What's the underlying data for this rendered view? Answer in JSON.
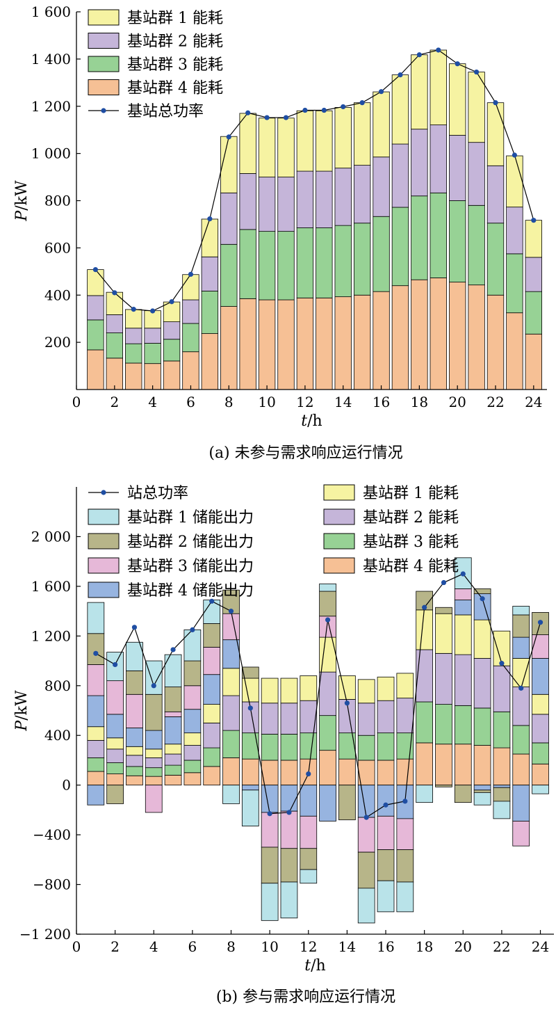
{
  "colors": {
    "g1": "#f6f3a2",
    "g2": "#c5b5d9",
    "g3": "#97d295",
    "g4": "#f6c095",
    "s1": "#b9e3e9",
    "s2": "#b7b589",
    "s3": "#e6b8d8",
    "s4": "#97b4e0",
    "line": "#1f4ea3"
  },
  "chart_data": [
    {
      "type": "bar",
      "caption": "(a)  未参与需求响应运行情况",
      "xlabel_main": "t",
      "xlabel_unit": "/h",
      "ylabel_main": "P",
      "ylabel_unit": "/kW",
      "xlim": [
        0,
        24.7
      ],
      "ylim": [
        0,
        1600
      ],
      "xticks": [
        0,
        2,
        4,
        6,
        8,
        10,
        12,
        14,
        16,
        18,
        20,
        22,
        24
      ],
      "xtick_labels": [
        "0",
        "2",
        "4",
        "6",
        "8",
        "10",
        "12",
        "14",
        "16",
        "18",
        "20",
        "22",
        "24"
      ],
      "yticks": [
        200,
        400,
        600,
        800,
        1000,
        1200,
        1400,
        1600
      ],
      "ytick_labels": [
        "200",
        "400",
        "600",
        "800",
        "1 000",
        "1 200",
        "1 400",
        "1 600"
      ],
      "x": [
        1,
        2,
        3,
        4,
        5,
        6,
        7,
        8,
        9,
        10,
        11,
        12,
        13,
        14,
        15,
        16,
        17,
        18,
        19,
        20,
        21,
        22,
        23,
        24
      ],
      "series": [
        {
          "key": "g4",
          "name": "基站群 4 能耗",
          "values": [
            168,
            133,
            112,
            110,
            121,
            160,
            237,
            352,
            385,
            380,
            380,
            388,
            388,
            393,
            400,
            415,
            440,
            465,
            473,
            455,
            443,
            400,
            325,
            235
          ]
        },
        {
          "key": "g3",
          "name": "基站群 3 能耗",
          "values": [
            127,
            107,
            82,
            86,
            92,
            120,
            180,
            263,
            293,
            290,
            290,
            297,
            297,
            302,
            305,
            318,
            332,
            355,
            360,
            345,
            337,
            305,
            250,
            180
          ]
        },
        {
          "key": "g2",
          "name": "基站群 2 能耗",
          "values": [
            103,
            77,
            66,
            64,
            74,
            100,
            145,
            218,
            237,
            230,
            230,
            240,
            240,
            243,
            245,
            252,
            268,
            283,
            288,
            277,
            267,
            243,
            198,
            145
          ]
        },
        {
          "key": "g1",
          "name": "基站群 1 能耗",
          "values": [
            110,
            95,
            79,
            74,
            84,
            107,
            160,
            239,
            255,
            250,
            250,
            256,
            256,
            257,
            265,
            276,
            293,
            315,
            317,
            303,
            298,
            267,
            217,
            157
          ]
        }
      ],
      "line": {
        "name": "基站总功率",
        "values": [
          508,
          410,
          340,
          333,
          372,
          488,
          723,
          1070,
          1172,
          1152,
          1152,
          1183,
          1183,
          1198,
          1215,
          1262,
          1333,
          1418,
          1438,
          1380,
          1345,
          1215,
          993,
          717
        ]
      },
      "legend": {
        "position": "top-left",
        "order": [
          "g1",
          "g2",
          "g3",
          "g4",
          "line"
        ]
      }
    },
    {
      "type": "bar",
      "caption": "(b)  参与需求响应运行情况",
      "xlabel_main": "t",
      "xlabel_unit": "/h",
      "ylabel_main": "P",
      "ylabel_unit": "/kW",
      "xlim": [
        0,
        24.7
      ],
      "ylim": [
        -1200,
        2400
      ],
      "xticks": [
        0,
        2,
        4,
        6,
        8,
        10,
        12,
        14,
        16,
        18,
        20,
        22,
        24
      ],
      "xtick_labels": [
        "0",
        "2",
        "4",
        "6",
        "8",
        "10",
        "12",
        "14",
        "16",
        "18",
        "20",
        "22",
        "24"
      ],
      "yticks": [
        -1200,
        -800,
        -400,
        0,
        400,
        800,
        1200,
        1600,
        2000
      ],
      "ytick_labels": [
        "−1 200",
        "−800",
        "−400",
        "0",
        "400",
        "800",
        "1 200",
        "1 600",
        "2 000"
      ],
      "x": [
        1,
        2,
        3,
        4,
        5,
        6,
        7,
        8,
        9,
        10,
        11,
        12,
        13,
        14,
        15,
        16,
        17,
        18,
        19,
        20,
        21,
        22,
        23,
        24
      ],
      "positive_series": [
        {
          "key": "g4",
          "name": "基站群 4 能耗",
          "values": [
            110,
            90,
            75,
            70,
            80,
            100,
            150,
            220,
            210,
            200,
            200,
            210,
            280,
            210,
            200,
            200,
            210,
            340,
            330,
            330,
            320,
            300,
            250,
            170
          ]
        },
        {
          "key": "g3",
          "name": "基站群 3 能耗",
          "values": [
            110,
            90,
            75,
            70,
            80,
            100,
            150,
            220,
            210,
            210,
            210,
            210,
            280,
            210,
            200,
            220,
            210,
            330,
            320,
            310,
            300,
            290,
            230,
            170
          ]
        },
        {
          "key": "g2",
          "name": "基站群 2 能耗",
          "values": [
            140,
            110,
            90,
            80,
            90,
            120,
            200,
            280,
            250,
            250,
            250,
            260,
            350,
            270,
            260,
            260,
            280,
            420,
            410,
            410,
            400,
            370,
            310,
            230
          ]
        },
        {
          "key": "g1",
          "name": "基站群 1 能耗",
          "values": [
            110,
            90,
            70,
            70,
            80,
            100,
            150,
            220,
            190,
            200,
            200,
            200,
            280,
            190,
            190,
            190,
            200,
            320,
            320,
            320,
            310,
            280,
            230,
            160
          ]
        },
        {
          "key": "s4",
          "name": "基站群 4 储能出力",
          "values": [
            250,
            190,
            150,
            150,
            220,
            190,
            240,
            230,
            0,
            0,
            0,
            0,
            0,
            0,
            0,
            0,
            0,
            0,
            0,
            120,
            210,
            0,
            170,
            290
          ]
        },
        {
          "key": "s3",
          "name": "基站群 3 储能出力",
          "values": [
            250,
            270,
            270,
            0,
            40,
            190,
            220,
            210,
            0,
            0,
            0,
            0,
            170,
            0,
            0,
            0,
            0,
            0,
            0,
            90,
            0,
            0,
            0,
            190
          ]
        },
        {
          "key": "s2",
          "name": "基站群 2 储能出力",
          "values": [
            250,
            0,
            190,
            290,
            200,
            200,
            190,
            190,
            90,
            0,
            0,
            0,
            200,
            0,
            0,
            0,
            0,
            150,
            50,
            0,
            40,
            0,
            180,
            180
          ]
        },
        {
          "key": "s1",
          "name": "基站群 1 储能出力",
          "values": [
            250,
            230,
            230,
            270,
            260,
            250,
            190,
            0,
            0,
            0,
            0,
            0,
            60,
            0,
            0,
            0,
            0,
            0,
            0,
            250,
            0,
            0,
            70,
            0
          ]
        }
      ],
      "negative_series": [
        {
          "key": "s4",
          "name": "基站群 4 储能出力",
          "values": [
            -160,
            0,
            0,
            0,
            0,
            0,
            0,
            0,
            -40,
            -220,
            -210,
            -250,
            -290,
            0,
            -260,
            -250,
            -270,
            0,
            0,
            0,
            -40,
            -20,
            -290,
            0
          ]
        },
        {
          "key": "s3",
          "name": "基站群 3 储能出力",
          "values": [
            0,
            0,
            0,
            -220,
            0,
            0,
            0,
            0,
            0,
            -280,
            -300,
            -260,
            0,
            0,
            -280,
            -270,
            -250,
            0,
            0,
            0,
            0,
            0,
            -200,
            0
          ]
        },
        {
          "key": "s2",
          "name": "基站群 2 储能出力",
          "values": [
            0,
            -150,
            0,
            0,
            0,
            0,
            0,
            0,
            0,
            -290,
            -270,
            -170,
            0,
            -280,
            -290,
            -250,
            -260,
            0,
            -15,
            -140,
            -20,
            -110,
            0,
            0
          ]
        },
        {
          "key": "s1",
          "name": "基站群 1 储能出力",
          "values": [
            0,
            0,
            0,
            0,
            0,
            0,
            0,
            -150,
            -290,
            -300,
            -290,
            -110,
            0,
            0,
            -280,
            -250,
            -240,
            -140,
            0,
            0,
            -100,
            -140,
            0,
            -70
          ]
        }
      ],
      "line": {
        "name": "站总功率",
        "values": [
          1060,
          970,
          1270,
          800,
          1090,
          1250,
          1480,
          1400,
          620,
          -230,
          -220,
          90,
          1330,
          660,
          -260,
          -160,
          -130,
          1430,
          1630,
          1700,
          1500,
          980,
          780,
          1310
        ]
      },
      "legend": {
        "position": "top",
        "left_order": [
          "line",
          "s1",
          "s2",
          "s3",
          "s4"
        ],
        "right_order": [
          "g1",
          "g2",
          "g3",
          "g4"
        ]
      }
    }
  ]
}
